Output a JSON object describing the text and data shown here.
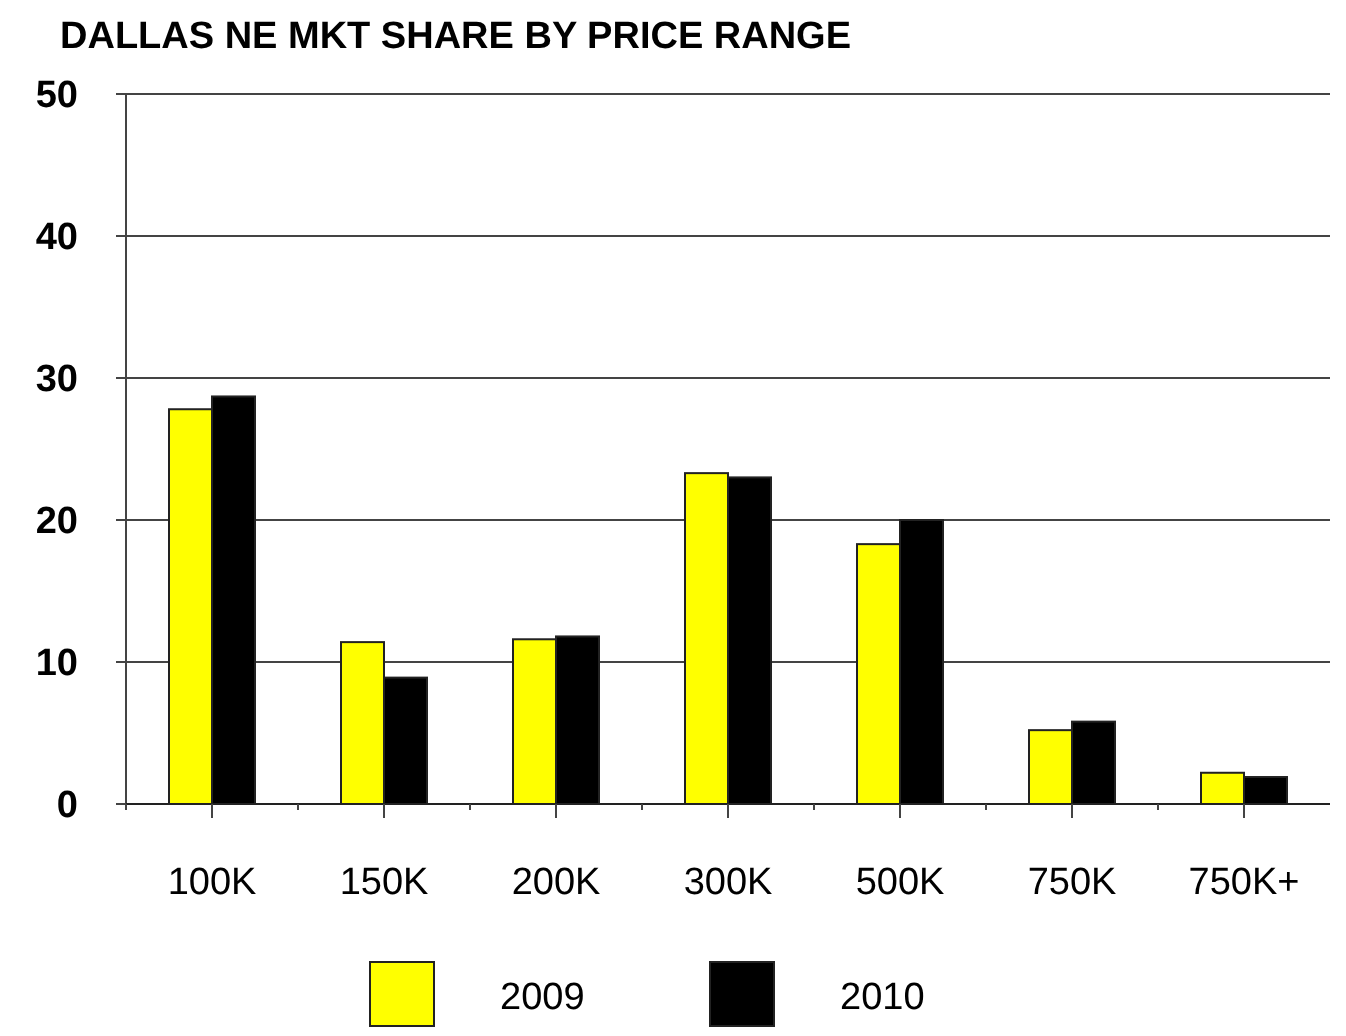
{
  "chart_data": {
    "type": "bar",
    "title": "DALLAS NE MKT SHARE BY PRICE RANGE",
    "categories": [
      "100K",
      "150K",
      "200K",
      "300K",
      "500K",
      "750K",
      "750K+"
    ],
    "series": [
      {
        "name": "2009",
        "color": "#ffff00",
        "values": [
          27.8,
          11.4,
          11.6,
          23.3,
          18.3,
          5.2,
          2.2
        ]
      },
      {
        "name": "2010",
        "color": "#000000",
        "values": [
          28.7,
          8.9,
          11.8,
          23.0,
          20.0,
          5.8,
          1.9
        ]
      }
    ],
    "ylim": [
      0,
      50
    ],
    "yticks": [
      0,
      10,
      20,
      30,
      40,
      50
    ],
    "grid": "y",
    "legend": "bottom"
  }
}
